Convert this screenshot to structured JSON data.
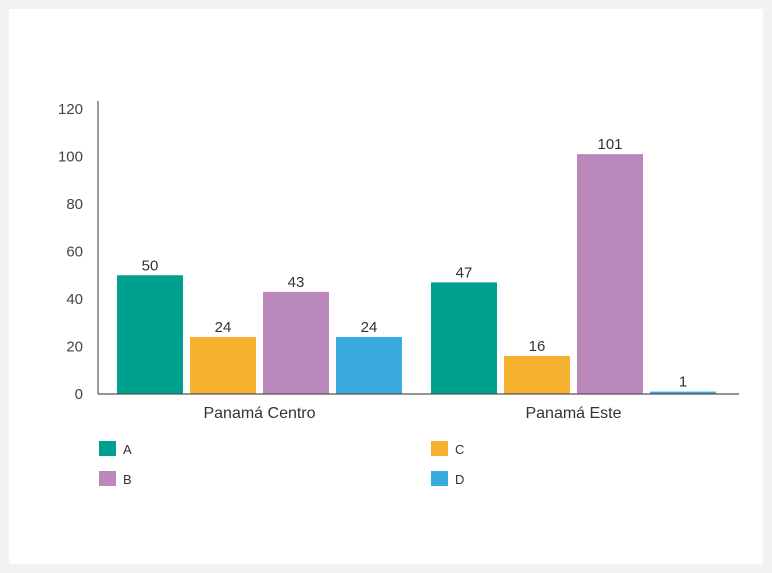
{
  "chart_data": {
    "type": "bar",
    "categories": [
      "Panamá Centro",
      "Panamá Este"
    ],
    "series": [
      {
        "name": "A",
        "color": "#00a08e",
        "values": [
          50,
          47
        ]
      },
      {
        "name": "C",
        "color": "#f5b02e",
        "values": [
          24,
          16
        ]
      },
      {
        "name": "B",
        "color": "#bb88bb",
        "values": [
          43,
          101
        ]
      },
      {
        "name": "D",
        "color": "#3aabdf",
        "values": [
          24,
          1
        ]
      }
    ],
    "title": "",
    "xlabel": "",
    "ylabel": "",
    "ylim": [
      0,
      120
    ],
    "yticks": [
      "0",
      "20",
      "40",
      "60",
      "80",
      "100",
      "120"
    ],
    "grid": false,
    "legend": {
      "placement": "bottom",
      "columns": [
        [
          "A",
          "B"
        ],
        [
          "C",
          "D"
        ]
      ]
    }
  }
}
